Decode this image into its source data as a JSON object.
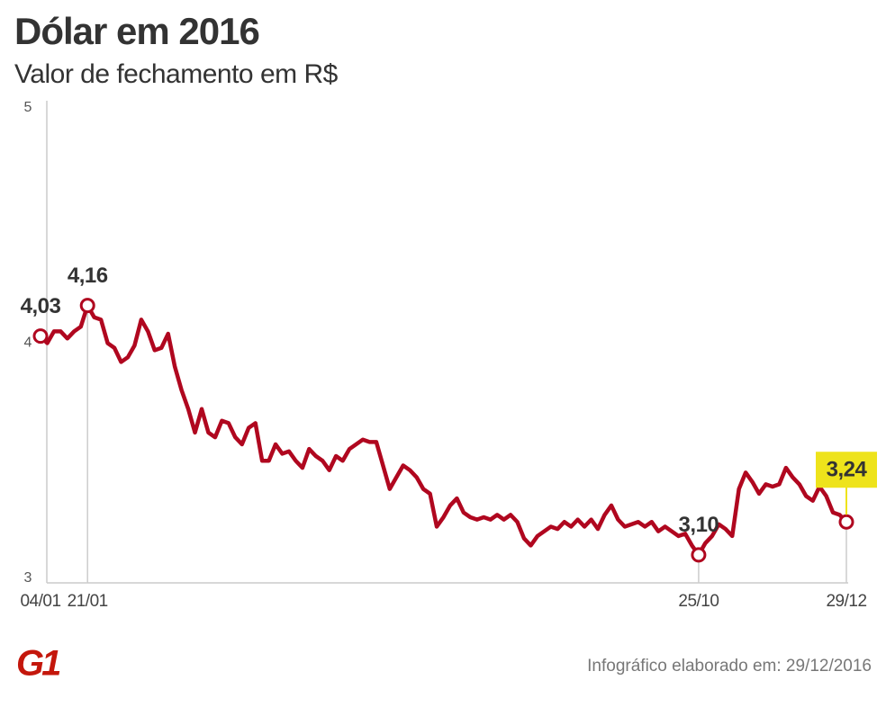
{
  "chart_data": {
    "type": "line",
    "title": "Dólar em 2016",
    "subtitle": "Valor de fechamento em R$",
    "logo": "G1",
    "source": "Infográfico elaborado em: 29/12/2016",
    "categories": [
      "04/01",
      null,
      null,
      null,
      null,
      null,
      null,
      "21/01",
      null,
      null,
      null,
      null,
      null,
      null,
      null,
      null,
      null,
      null,
      null,
      null,
      null,
      null,
      null,
      null,
      null,
      null,
      null,
      null,
      null,
      null,
      null,
      null,
      null,
      null,
      null,
      null,
      null,
      null,
      null,
      null,
      null,
      null,
      null,
      null,
      null,
      null,
      null,
      null,
      null,
      null,
      null,
      null,
      null,
      null,
      null,
      null,
      null,
      null,
      null,
      null,
      null,
      null,
      null,
      null,
      null,
      null,
      null,
      null,
      null,
      null,
      null,
      null,
      null,
      null,
      null,
      null,
      null,
      null,
      null,
      null,
      null,
      null,
      null,
      null,
      null,
      null,
      null,
      null,
      null,
      null,
      null,
      null,
      null,
      null,
      null,
      null,
      null,
      null,
      "25/10",
      null,
      null,
      null,
      null,
      null,
      null,
      null,
      null,
      null,
      null,
      null,
      null,
      null,
      null,
      null,
      null,
      null,
      null,
      null,
      null,
      null,
      "29/12"
    ],
    "series": [
      {
        "name": "Dólar",
        "color": "#b0071f",
        "values": [
          4.03,
          4.0,
          4.05,
          4.05,
          4.02,
          4.05,
          4.07,
          4.16,
          4.11,
          4.1,
          4.0,
          3.98,
          3.92,
          3.94,
          3.99,
          4.1,
          4.05,
          3.97,
          3.98,
          4.04,
          3.9,
          3.8,
          3.72,
          3.62,
          3.72,
          3.62,
          3.6,
          3.67,
          3.66,
          3.6,
          3.57,
          3.64,
          3.66,
          3.5,
          3.5,
          3.57,
          3.53,
          3.54,
          3.5,
          3.47,
          3.55,
          3.52,
          3.5,
          3.46,
          3.52,
          3.5,
          3.55,
          3.57,
          3.59,
          3.58,
          3.58,
          3.48,
          3.38,
          3.43,
          3.48,
          3.46,
          3.43,
          3.38,
          3.36,
          3.22,
          3.26,
          3.31,
          3.34,
          3.28,
          3.26,
          3.25,
          3.26,
          3.25,
          3.27,
          3.25,
          3.27,
          3.24,
          3.17,
          3.14,
          3.18,
          3.2,
          3.22,
          3.21,
          3.24,
          3.22,
          3.25,
          3.22,
          3.25,
          3.21,
          3.27,
          3.31,
          3.25,
          3.22,
          3.23,
          3.24,
          3.22,
          3.24,
          3.2,
          3.22,
          3.2,
          3.18,
          3.19,
          3.14,
          3.1,
          3.15,
          3.18,
          3.23,
          3.21,
          3.18,
          3.38,
          3.45,
          3.41,
          3.36,
          3.4,
          3.39,
          3.4,
          3.47,
          3.43,
          3.4,
          3.35,
          3.33,
          3.39,
          3.35,
          3.28,
          3.27,
          3.24
        ],
        "value_labels": [
          "4,03",
          null,
          null,
          null,
          null,
          null,
          null,
          "4,16",
          null,
          null,
          null,
          null,
          null,
          null,
          null,
          null,
          null,
          null,
          null,
          null,
          null,
          null,
          null,
          null,
          null,
          null,
          null,
          null,
          null,
          null,
          null,
          null,
          null,
          null,
          null,
          null,
          null,
          null,
          null,
          null,
          null,
          null,
          null,
          null,
          null,
          null,
          null,
          null,
          null,
          null,
          null,
          null,
          null,
          null,
          null,
          null,
          null,
          null,
          null,
          null,
          null,
          null,
          null,
          null,
          null,
          null,
          null,
          null,
          null,
          null,
          null,
          null,
          null,
          null,
          null,
          null,
          null,
          null,
          null,
          null,
          null,
          null,
          null,
          null,
          null,
          null,
          null,
          null,
          null,
          null,
          null,
          null,
          null,
          null,
          null,
          null,
          null,
          null,
          "3,10",
          null,
          null,
          null,
          null,
          null,
          null,
          null,
          null,
          null,
          null,
          null,
          null,
          null,
          null,
          null,
          null,
          null,
          null,
          null,
          null,
          null,
          "3,24"
        ]
      }
    ],
    "highlight_color": "#eee31b",
    "ylim": [
      3,
      5
    ],
    "yticks": [
      3,
      4,
      5
    ]
  }
}
